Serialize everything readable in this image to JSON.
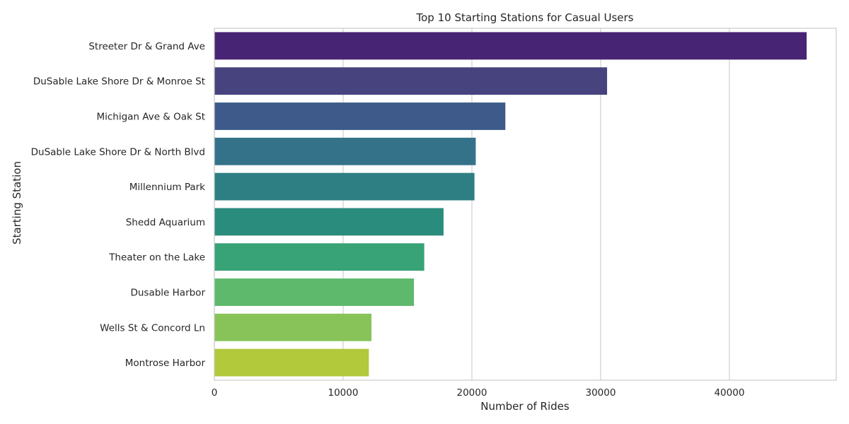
{
  "chart_data": {
    "type": "bar",
    "orientation": "horizontal",
    "title": "Top 10 Starting Stations for Casual Users",
    "xlabel": "Number of Rides",
    "ylabel": "Starting Station",
    "categories": [
      "Streeter Dr & Grand Ave",
      "DuSable Lake Shore Dr & Monroe St",
      "Michigan Ave & Oak St",
      "DuSable Lake Shore Dr & North Blvd",
      "Millennium Park",
      "Shedd Aquarium",
      "Theater on the Lake",
      "Dusable Harbor",
      "Wells St & Concord Ln",
      "Montrose Harbor"
    ],
    "values": [
      46000,
      30500,
      22600,
      20300,
      20200,
      17800,
      16300,
      15500,
      12200,
      12000
    ],
    "colors": [
      "#482475",
      "#46437e",
      "#3e5a8b",
      "#34728a",
      "#2d7f83",
      "#2a8c7c",
      "#38a376",
      "#5fb96c",
      "#88c35a",
      "#b2c93b"
    ],
    "xlim": [
      0,
      48300
    ],
    "xticks": [
      0,
      10000,
      20000,
      30000,
      40000
    ],
    "grid": true,
    "grid_color": "#d0d0d0",
    "spine_color": "#cccccc",
    "text_color": "#262626"
  }
}
